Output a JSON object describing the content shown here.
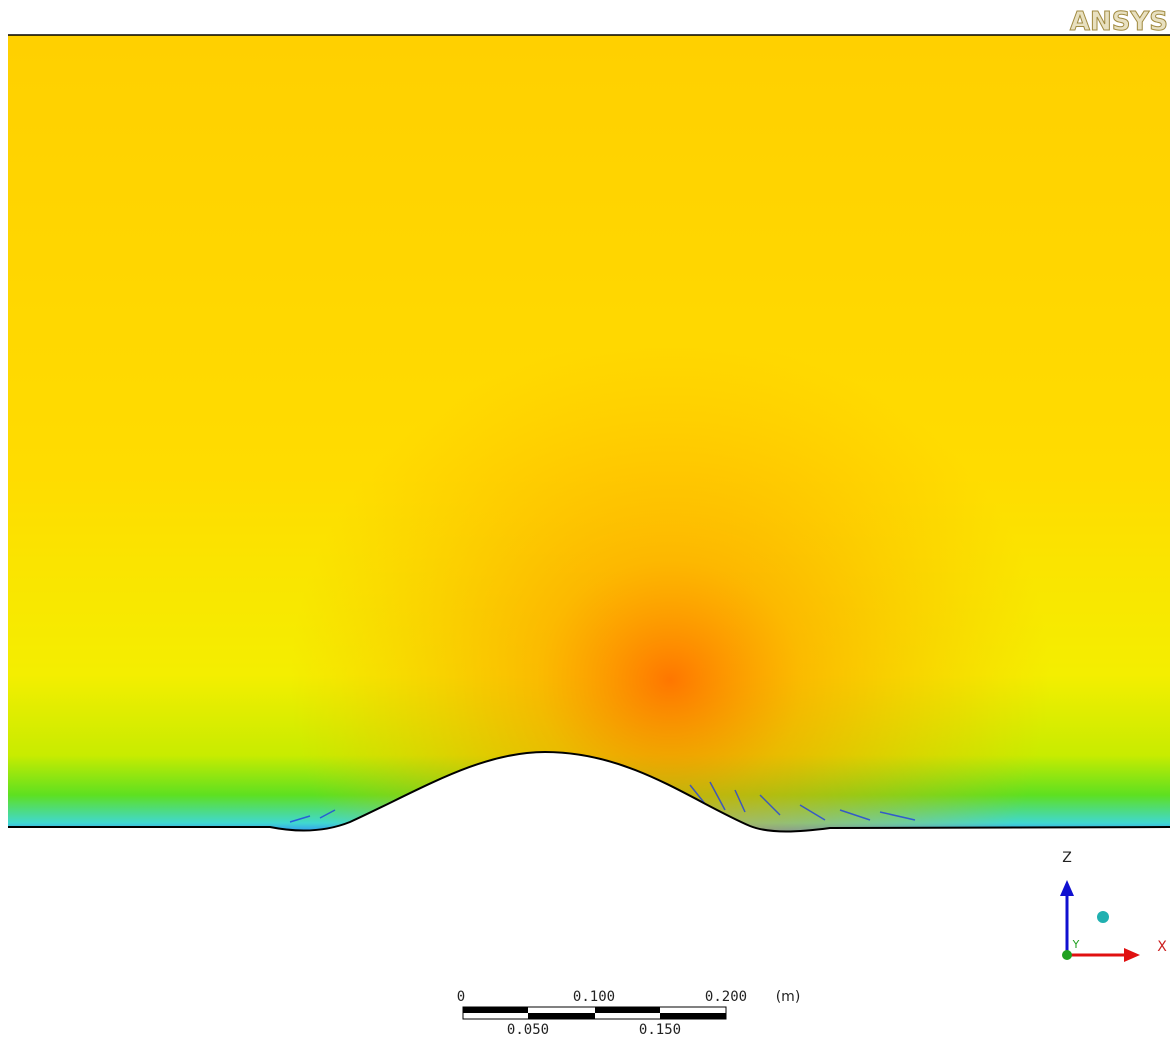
{
  "logo": "ANSYS",
  "triad": {
    "z": "Z",
    "y": "Y",
    "x": "X"
  },
  "scale_bar": {
    "top_labels": [
      "0",
      "0.100",
      "0.200"
    ],
    "unit": "(m)",
    "bottom_labels": [
      "0.050",
      "0.150"
    ]
  }
}
